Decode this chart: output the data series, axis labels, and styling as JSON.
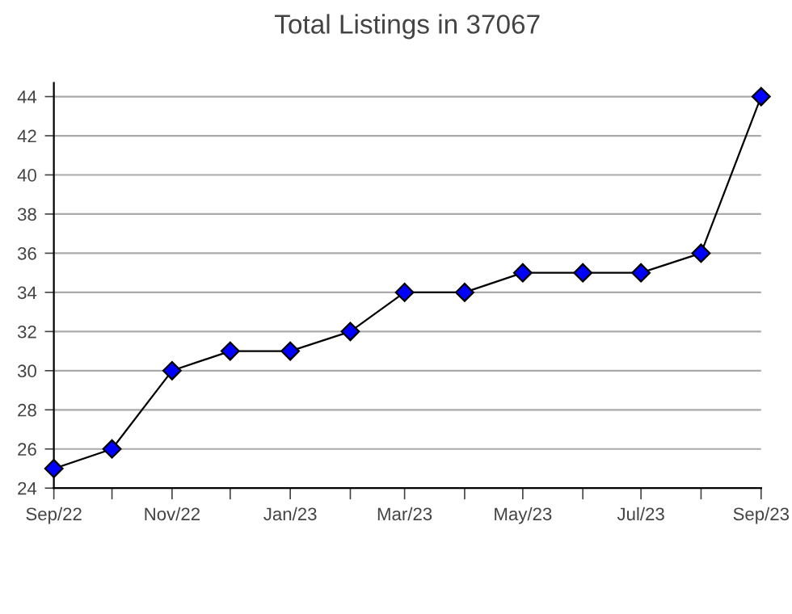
{
  "chart_data": {
    "type": "line",
    "title": "Total Listings in 37067",
    "x": [
      "2022-09",
      "2022-10",
      "2022-11",
      "2022-12",
      "2023-01",
      "2023-02",
      "2023-03",
      "2023-04",
      "2023-05",
      "2023-06",
      "2023-07",
      "2023-08",
      "2023-09"
    ],
    "series": [
      {
        "color": "#0000ff",
        "values": [
          25,
          26,
          30,
          31,
          31,
          32,
          34,
          34,
          35,
          35,
          35,
          36,
          44
        ]
      }
    ],
    "xlim": [
      "2022-09",
      "2023-09"
    ],
    "xticks": [
      {
        "value": "2022-09",
        "label": "Sep/22"
      },
      {
        "value": "2022-10",
        "label": null
      },
      {
        "value": "2022-11",
        "label": "Nov/22"
      },
      {
        "value": "2022-12",
        "label": null
      },
      {
        "value": "2023-01",
        "label": "Jan/23"
      },
      {
        "value": "2023-02",
        "label": null
      },
      {
        "value": "2023-03",
        "label": "Mar/23"
      },
      {
        "value": "2023-04",
        "label": null
      },
      {
        "value": "2023-05",
        "label": "May/23"
      },
      {
        "value": "2023-06",
        "label": null
      },
      {
        "value": "2023-07",
        "label": "Jul/23"
      },
      {
        "value": "2023-08",
        "label": null
      },
      {
        "value": "2023-09",
        "label": "Sep/23"
      }
    ],
    "ylim": [
      24,
      44.7
    ],
    "yticks": [
      24,
      26,
      28,
      30,
      32,
      34,
      36,
      38,
      40,
      42,
      44
    ],
    "grid": "y",
    "marker": "diamond",
    "line_style": "solid"
  }
}
